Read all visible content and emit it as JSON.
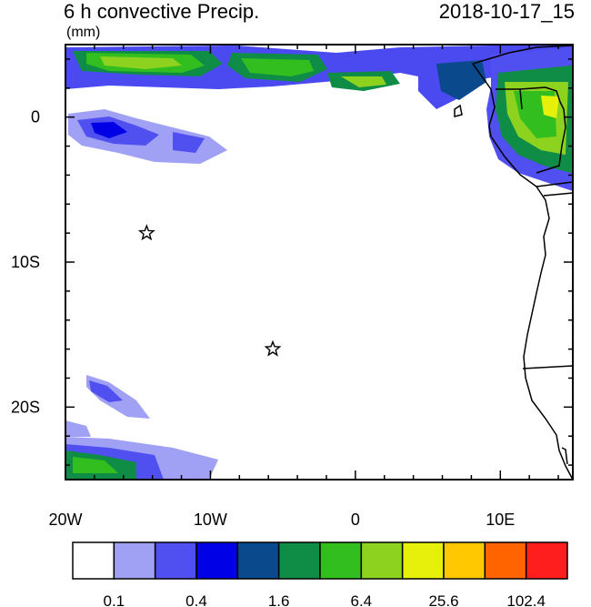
{
  "header": {
    "title": "6 h convective Precip.",
    "units": "(mm)",
    "valid_time": "2018-10-17_15"
  },
  "map": {
    "lon_range": [
      -20,
      15
    ],
    "lat_range": [
      -25,
      5
    ],
    "x_ticks": [
      {
        "lon": -20,
        "label": "20W"
      },
      {
        "lon": -10,
        "label": "10W"
      },
      {
        "lon": 0,
        "label": "0"
      },
      {
        "lon": 10,
        "label": "10E"
      }
    ],
    "y_ticks": [
      {
        "lat": 0,
        "label": "0"
      },
      {
        "lat": -10,
        "label": "10S"
      },
      {
        "lat": -20,
        "label": "20S"
      }
    ],
    "station_markers": [
      {
        "name": "star-marker-1",
        "lon": -14.4,
        "lat": -8.0
      },
      {
        "name": "star-marker-2",
        "lon": -5.7,
        "lat": -16.0
      }
    ]
  },
  "colorbar": {
    "colors": [
      "#ffffff",
      "#a0a0f5",
      "#5050f0",
      "#0000e6",
      "#0a4a8c",
      "#0f8c46",
      "#32be1e",
      "#8cd21e",
      "#e6f00a",
      "#ffc800",
      "#ff6400",
      "#ff1e1e"
    ],
    "labels": [
      "0.1",
      "0.4",
      "1.6",
      "6.4",
      "25.6",
      "102.4"
    ]
  },
  "chart_data": {
    "type": "heatmap",
    "title": "6 h convective Precip.",
    "units": "(mm)",
    "valid_time": "2018-10-17_15",
    "x_range": [
      -20,
      15
    ],
    "y_range": [
      -25,
      5
    ],
    "contour_levels": [
      0.1,
      0.2,
      0.4,
      0.8,
      1.6,
      3.2,
      6.4,
      12.8,
      25.6,
      51.2,
      102.4
    ]
  }
}
